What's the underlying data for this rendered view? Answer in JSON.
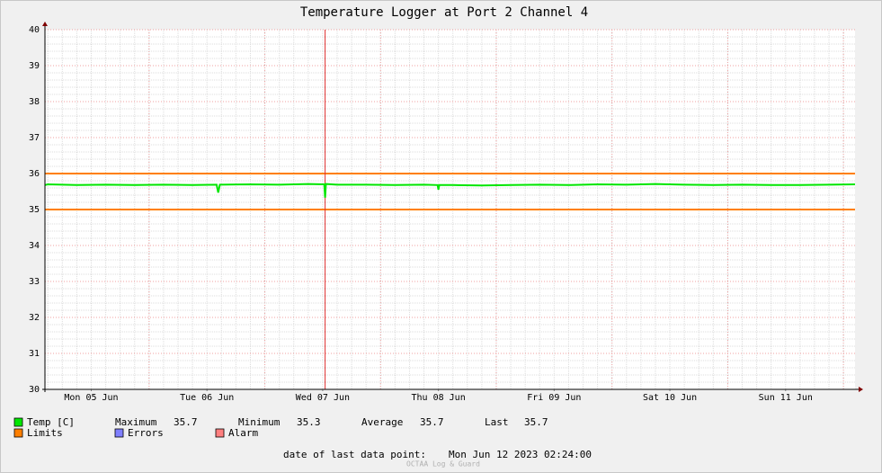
{
  "chart_data": {
    "type": "line",
    "title": "Temperature Logger at Port 2 Channel 4",
    "x": [
      "2023-06-05T02:24",
      "2023-06-05T03:00",
      "2023-06-05T09:00",
      "2023-06-05T15:00",
      "2023-06-05T21:00",
      "2023-06-06T03:00",
      "2023-06-06T09:00",
      "2023-06-06T14:00",
      "2023-06-06T14:20",
      "2023-06-06T14:40",
      "2023-06-06T21:00",
      "2023-06-07T03:00",
      "2023-06-07T09:00",
      "2023-06-07T12:20",
      "2023-06-07T12:30",
      "2023-06-07T12:40",
      "2023-06-07T15:00",
      "2023-06-07T21:00",
      "2023-06-08T03:00",
      "2023-06-08T09:00",
      "2023-06-08T11:50",
      "2023-06-08T12:00",
      "2023-06-08T12:10",
      "2023-06-08T15:00",
      "2023-06-08T21:00",
      "2023-06-09T03:00",
      "2023-06-09T09:00",
      "2023-06-09T15:00",
      "2023-06-09T21:00",
      "2023-06-10T03:00",
      "2023-06-10T09:00",
      "2023-06-10T15:00",
      "2023-06-10T21:00",
      "2023-06-11T03:00",
      "2023-06-11T09:00",
      "2023-06-11T15:00",
      "2023-06-11T21:00",
      "2023-06-12T02:24"
    ],
    "series": [
      {
        "name": "Temp [C]",
        "color": "#00e600",
        "values": [
          35.68,
          35.7,
          35.68,
          35.69,
          35.68,
          35.69,
          35.68,
          35.69,
          35.47,
          35.69,
          35.7,
          35.69,
          35.71,
          35.7,
          35.33,
          35.71,
          35.69,
          35.69,
          35.68,
          35.69,
          35.68,
          35.55,
          35.68,
          35.68,
          35.67,
          35.68,
          35.69,
          35.68,
          35.7,
          35.69,
          35.71,
          35.69,
          35.68,
          35.69,
          35.68,
          35.68,
          35.69,
          35.7
        ]
      }
    ],
    "limits": {
      "name": "Limits",
      "color": "#ff7f00",
      "values": [
        35,
        36
      ]
    },
    "legend_extra": [
      {
        "name": "Errors",
        "color": "#7f7fff"
      },
      {
        "name": "Alarm",
        "color": "#ff7f7f"
      }
    ],
    "vrule": {
      "x": "2023-06-07T12:30",
      "color": "#e03030"
    },
    "stats": [
      {
        "label": "Maximum",
        "value": 35.7
      },
      {
        "label": "Minimum",
        "value": 35.3
      },
      {
        "label": "Average",
        "value": 35.7
      },
      {
        "label": "Last",
        "value": 35.7
      }
    ],
    "xlim": [
      "2023-06-05T02:24",
      "2023-06-12T02:24"
    ],
    "xticks": [
      {
        "value": "2023-06-05T12:00",
        "label": "Mon 05 Jun"
      },
      {
        "value": "2023-06-06T12:00",
        "label": "Tue 06 Jun"
      },
      {
        "value": "2023-06-07T12:00",
        "label": "Wed 07 Jun"
      },
      {
        "value": "2023-06-08T12:00",
        "label": "Thu 08 Jun"
      },
      {
        "value": "2023-06-09T12:00",
        "label": "Fri 09 Jun"
      },
      {
        "value": "2023-06-10T12:00",
        "label": "Sat 10 Jun"
      },
      {
        "value": "2023-06-11T12:00",
        "label": "Sun 11 Jun"
      }
    ],
    "ylim": [
      30,
      40
    ],
    "yticks": [
      30,
      31,
      32,
      33,
      34,
      35,
      36,
      37,
      38,
      39,
      40
    ],
    "grid": true,
    "footer_label": "date of last data point:",
    "footer_value": "Mon Jun 12 2023 02:24:00",
    "watermark": "OCTAA Log & Guard"
  }
}
